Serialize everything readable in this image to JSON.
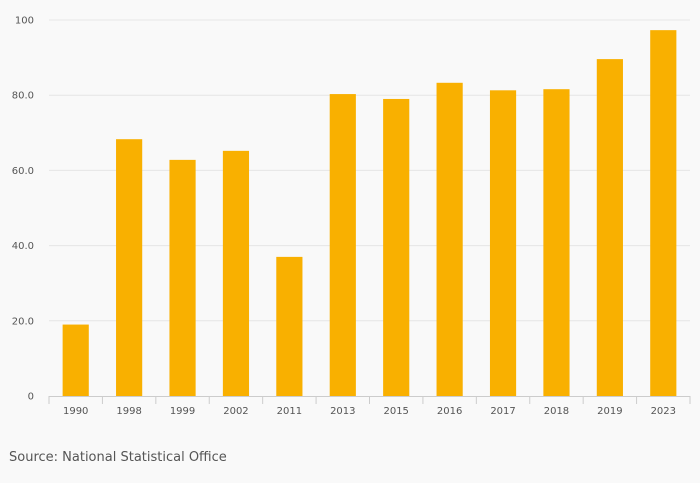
{
  "chart_data": {
    "type": "bar",
    "title": "",
    "xlabel": "",
    "ylabel": "",
    "categories": [
      "1990",
      "1998",
      "1999",
      "2002",
      "2011",
      "2013",
      "2015",
      "2016",
      "2017",
      "2018",
      "2019",
      "2023"
    ],
    "values": [
      19.0,
      68.3,
      62.8,
      65.2,
      37.0,
      80.3,
      79.0,
      83.3,
      81.3,
      81.6,
      89.6,
      97.3
    ],
    "ylim": [
      0,
      100
    ],
    "yticks": [
      0,
      20,
      40,
      60,
      80,
      100
    ],
    "ytick_labels": [
      "0",
      "20.0",
      "40.0",
      "60.0",
      "80.0",
      "100"
    ],
    "grid": true,
    "bar_color": "#f9b000",
    "grid_color": "#e6e6e6",
    "axis_color": "#cccccc"
  },
  "footer": {
    "source": "Source: National Statistical Office"
  }
}
